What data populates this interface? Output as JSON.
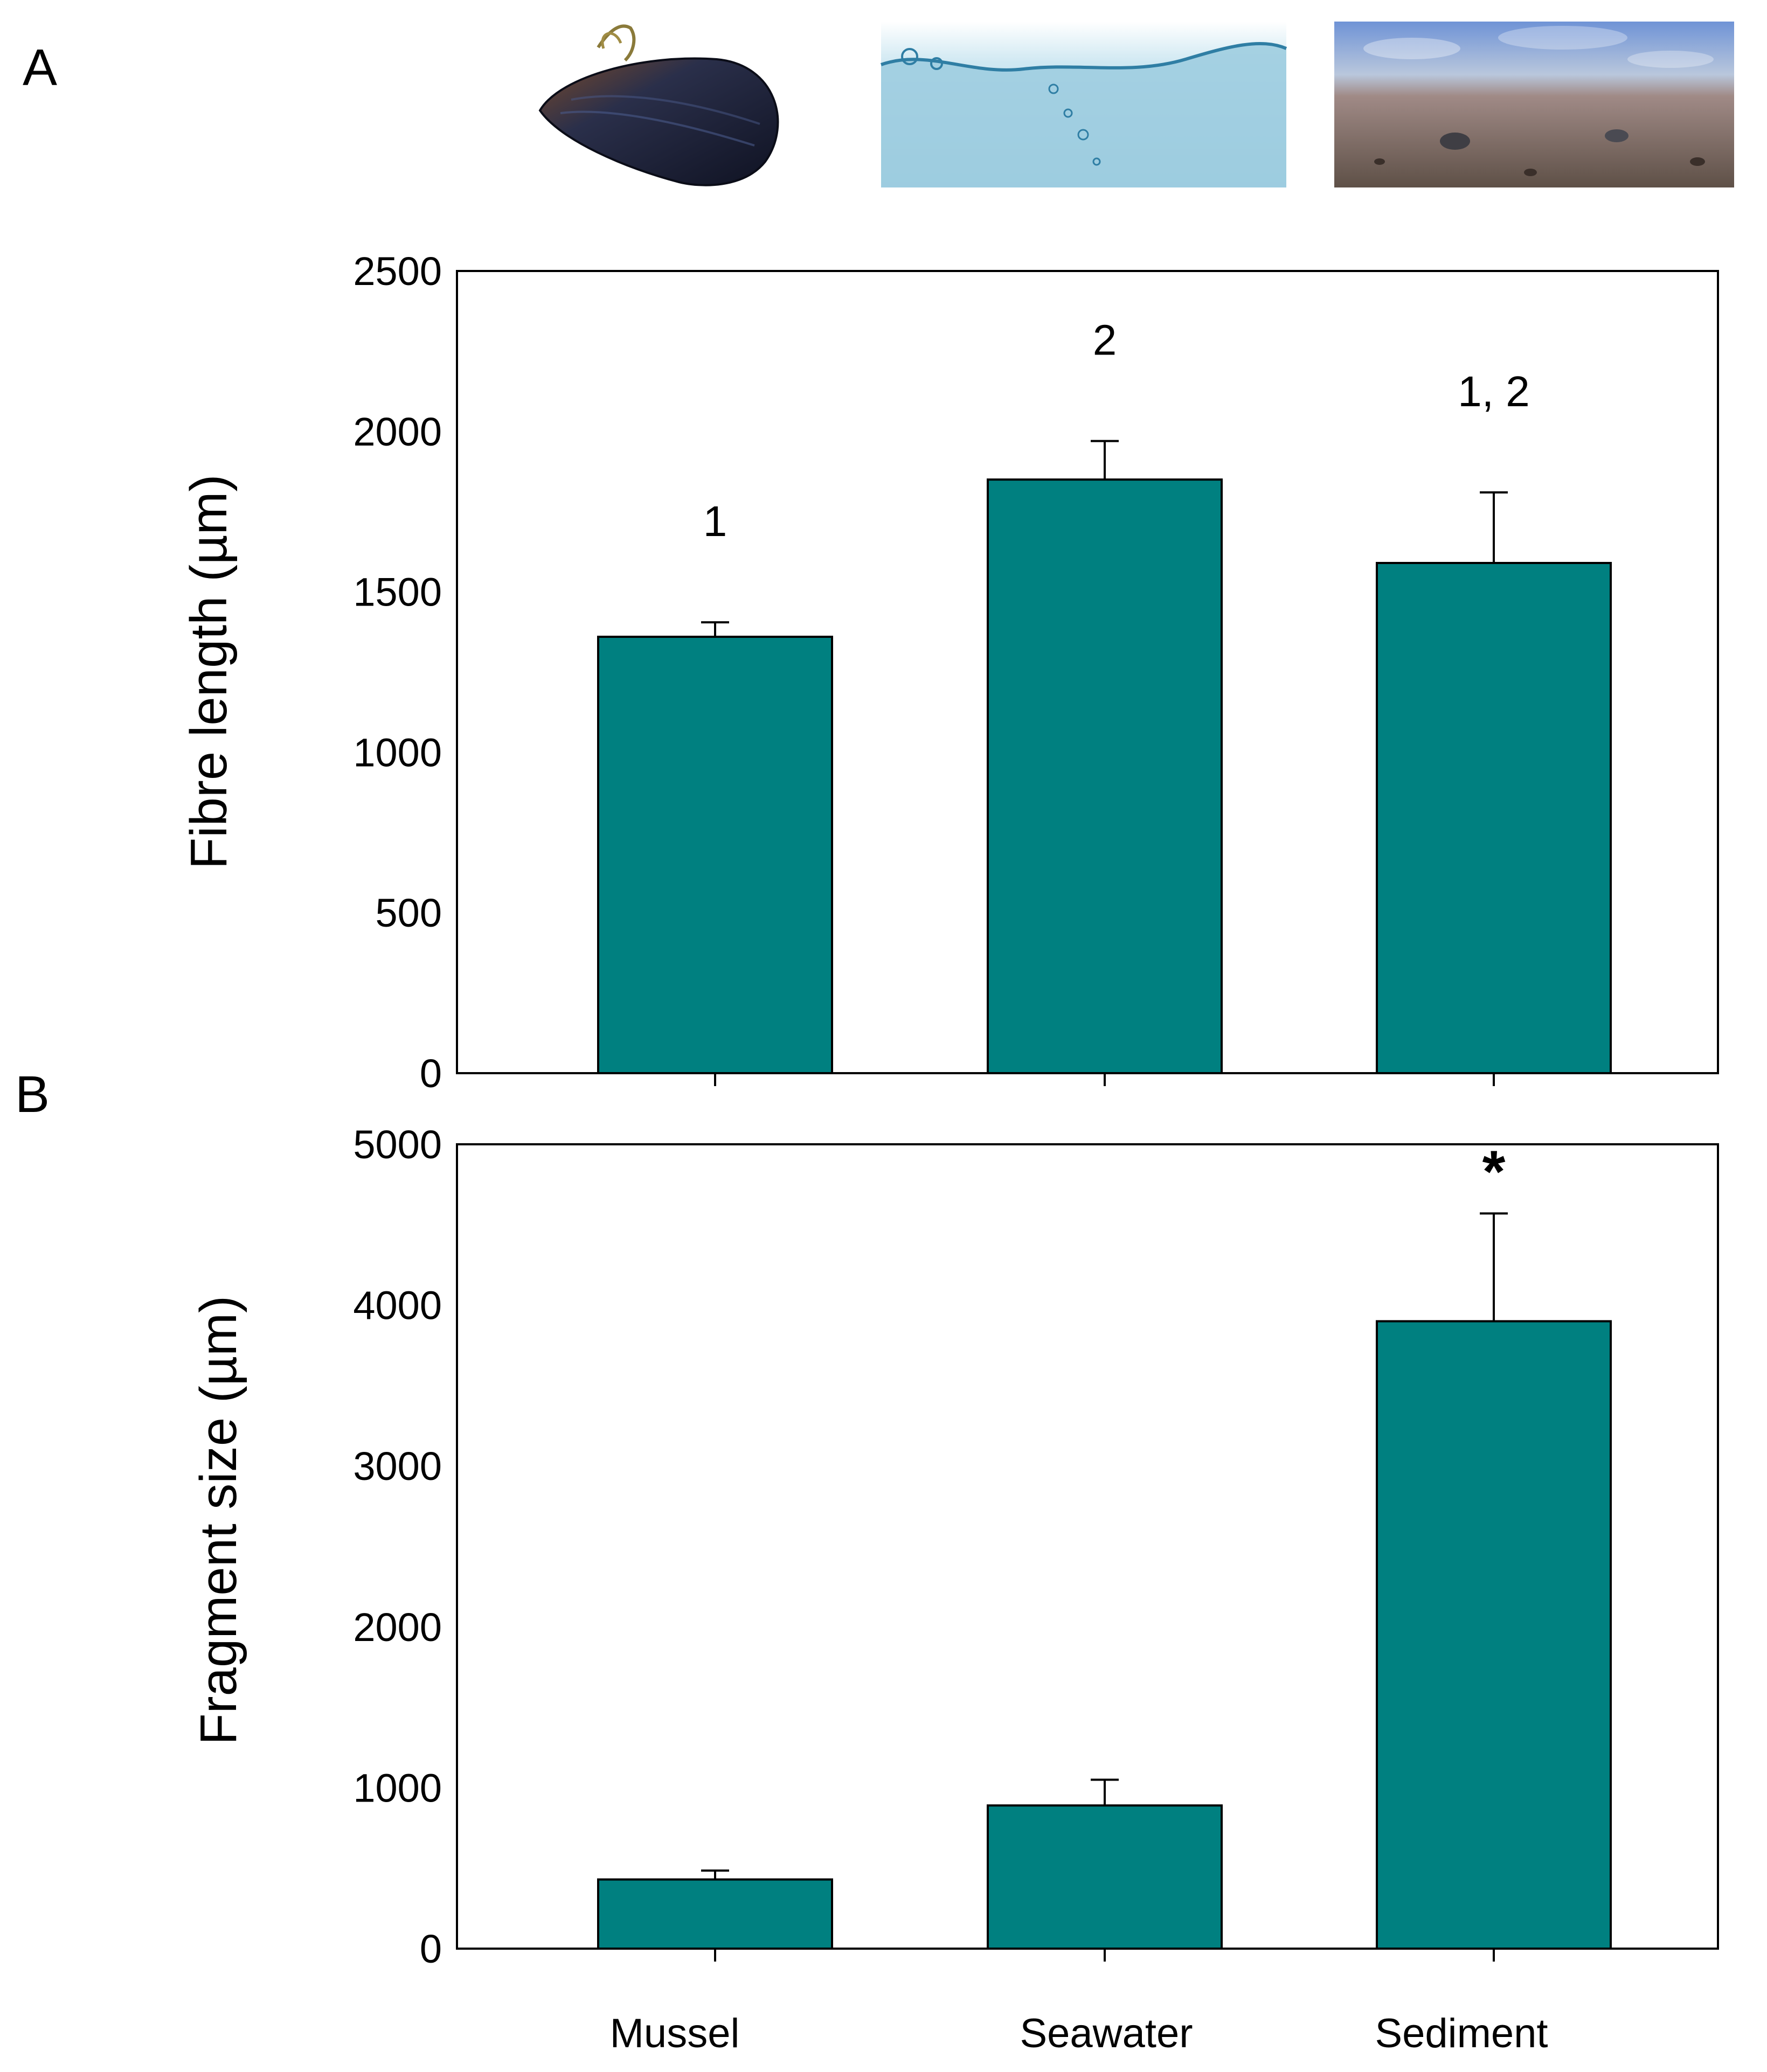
{
  "colors": {
    "bar_fill": "#008080",
    "mussel_shell": "#1d2236",
    "water": "#a9d3e4",
    "sand": "#7d6b5f",
    "sea_blue": "#5f88c8"
  },
  "categories": [
    "Mussel",
    "Seawater",
    "Sediment"
  ],
  "images": [
    {
      "name": "mussel-photo",
      "icon": "mussel-icon"
    },
    {
      "name": "seawater-photo",
      "icon": "water-wave-icon"
    },
    {
      "name": "sediment-photo",
      "icon": "sediment-beach-icon"
    }
  ],
  "chart_data": [
    {
      "type": "bar",
      "panel": "A",
      "categories": [
        "Mussel",
        "Seawater",
        "Sediment"
      ],
      "values": [
        1360,
        1850,
        1590
      ],
      "errors": [
        45,
        120,
        220
      ],
      "significance_labels": [
        "1",
        "2",
        "1, 2"
      ],
      "ylabel": "Fibre length (µm)",
      "xlabel": "",
      "ylim": [
        0,
        2500
      ],
      "yticks": [
        0,
        500,
        1000,
        1500,
        2000,
        2500
      ],
      "grid": false
    },
    {
      "type": "bar",
      "panel": "B",
      "categories": [
        "Mussel",
        "Seawater",
        "Sediment"
      ],
      "values": [
        430,
        890,
        3900
      ],
      "errors": [
        55,
        160,
        670
      ],
      "significance_labels": [
        "",
        "",
        "*"
      ],
      "ylabel": "Fragment size (µm)",
      "xlabel": "",
      "ylim": [
        0,
        5000
      ],
      "yticks": [
        0,
        1000,
        2000,
        3000,
        4000,
        5000
      ],
      "grid": false
    }
  ]
}
